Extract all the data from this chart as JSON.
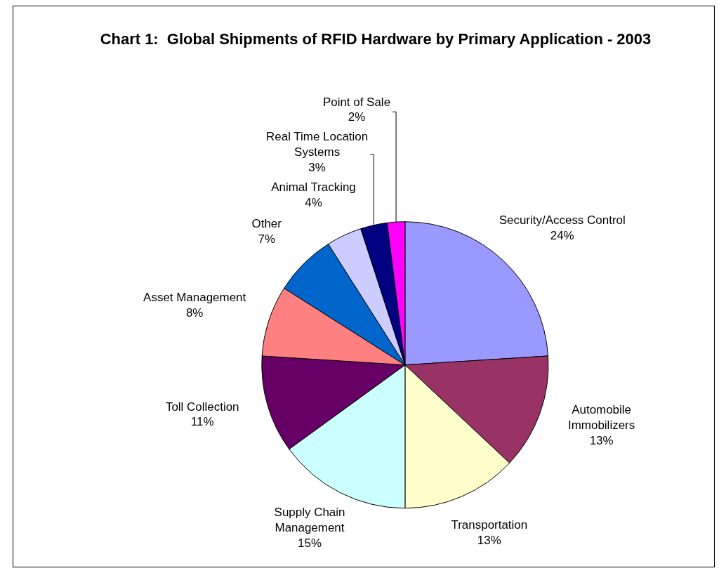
{
  "chart_data": {
    "type": "pie",
    "title": "Chart 1:  Global Shipments of RFID Hardware by Primary Application - 2003",
    "categories": [
      "Security/Access Control",
      "Automobile Immobilizers",
      "Transportation",
      "Supply Chain Management",
      "Toll Collection",
      "Asset Management",
      "Other",
      "Animal Tracking",
      "Real Time Location Systems",
      "Point of Sale"
    ],
    "values": [
      24,
      13,
      13,
      15,
      11,
      8,
      7,
      4,
      3,
      2
    ],
    "value_labels": [
      "24%",
      "13%",
      "13%",
      "15%",
      "11%",
      "8%",
      "7%",
      "4%",
      "3%",
      "2%"
    ],
    "colors": [
      "#9999ff",
      "#993366",
      "#ffffcc",
      "#ccffff",
      "#660066",
      "#ff8080",
      "#0066cc",
      "#ccccff",
      "#000080",
      "#ff00ff"
    ],
    "legend": false
  }
}
